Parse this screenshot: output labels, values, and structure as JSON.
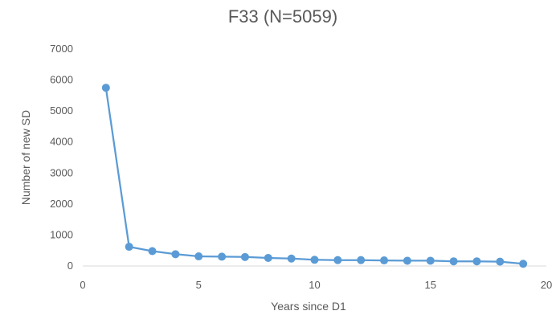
{
  "chart_data": {
    "type": "line",
    "title": "F33 (N=5059)",
    "xlabel": "Years since D1",
    "ylabel": "Number of new SD",
    "xlim": [
      0,
      20
    ],
    "ylim": [
      0,
      7000
    ],
    "x_ticks": [
      "0",
      "5",
      "10",
      "15",
      "20"
    ],
    "y_ticks": [
      "0",
      "1000",
      "2000",
      "3000",
      "4000",
      "5000",
      "6000",
      "7000"
    ],
    "grid": false,
    "legend": "none",
    "series": [
      {
        "color": "#5b9bd5",
        "x": [
          1,
          2,
          3,
          4,
          5,
          6,
          7,
          8,
          9,
          10,
          11,
          12,
          13,
          14,
          15,
          16,
          17,
          18,
          19
        ],
        "y": [
          5750,
          620,
          480,
          380,
          310,
          300,
          290,
          260,
          240,
          200,
          190,
          190,
          180,
          170,
          170,
          150,
          150,
          140,
          70
        ]
      }
    ]
  }
}
